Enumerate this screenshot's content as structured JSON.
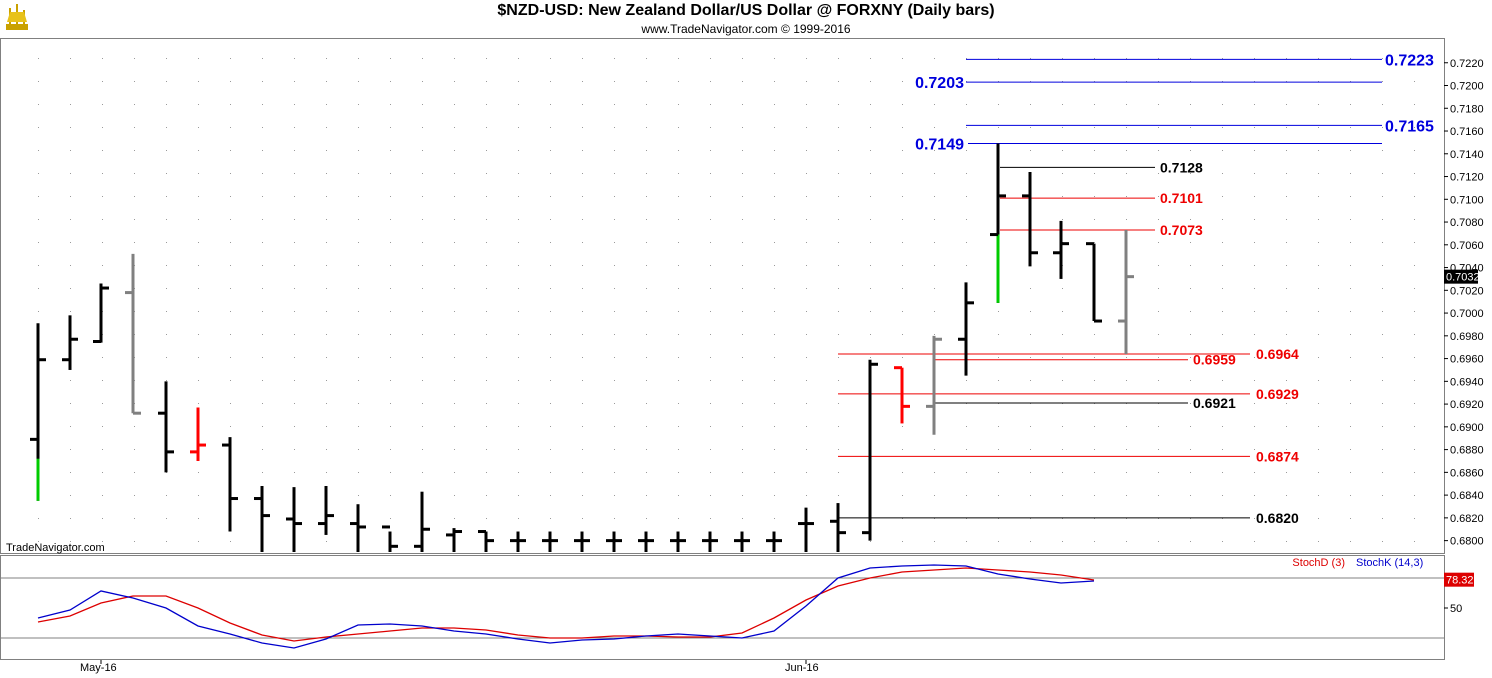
{
  "header": {
    "title": "$NZD-USD:  New Zealand Dollar/US Dollar @ FORXNY  (Daily bars)",
    "copyright": "www.TradeNavigator.com © 1999-2016",
    "watermark": "TradeNavigator.com",
    "logo_icon": "ship-icon"
  },
  "colors": {
    "up_bar": "#000000",
    "down_bar": "#000000",
    "gray_bar": "#808080",
    "red_bar": "#ff0000",
    "green_segment": "#00cc00",
    "fib_blue": "#0000dd",
    "fib_red": "#ee0000",
    "fib_black": "#000000",
    "stochD": "#dd0000",
    "stochK": "#0000cc",
    "last_price_bg": "#000000",
    "stoch_value_bg": "#dd0000"
  },
  "chart_data": [
    {
      "type": "ohlc",
      "title": "$NZD-USD:  New Zealand Dollar/US Dollar @ FORXNY  (Daily bars)",
      "ylim": [
        0.679,
        0.724
      ],
      "y_ticks": [
        "0.7220",
        "0.7200",
        "0.7180",
        "0.7160",
        "0.7140",
        "0.7120",
        "0.7100",
        "0.7080",
        "0.7060",
        "0.7040",
        "0.7020",
        "0.7000",
        "0.6980",
        "0.6960",
        "0.6940",
        "0.6920",
        "0.6900",
        "0.6880",
        "0.6860",
        "0.6840",
        "0.6820",
        "0.6800"
      ],
      "x_labels": [
        {
          "label": "May-16",
          "bar": 2
        },
        {
          "label": "Jun-16",
          "bar": 24
        }
      ],
      "last_price": "0.7032",
      "bars": [
        {
          "o": 0.6889,
          "h": 0.6991,
          "l": 0.6835,
          "c": 0.6959,
          "color": "black",
          "low_highlight": 0.6872
        },
        {
          "o": 0.6959,
          "h": 0.6998,
          "l": 0.695,
          "c": 0.6977,
          "color": "black"
        },
        {
          "o": 0.6975,
          "h": 0.7026,
          "l": 0.6974,
          "c": 0.7022,
          "color": "black"
        },
        {
          "o": 0.7018,
          "h": 0.7052,
          "l": 0.6912,
          "c": 0.6912,
          "color": "gray"
        },
        {
          "o": 0.6912,
          "h": 0.694,
          "l": 0.686,
          "c": 0.6878,
          "color": "black"
        },
        {
          "o": 0.6878,
          "h": 0.6917,
          "l": 0.687,
          "c": 0.6884,
          "color": "red"
        },
        {
          "o": 0.6884,
          "h": 0.6891,
          "l": 0.6808,
          "c": 0.6837,
          "color": "black"
        },
        {
          "o": 0.6837,
          "h": 0.6848,
          "l": 0.679,
          "c": 0.6822,
          "color": "black"
        },
        {
          "o": 0.6819,
          "h": 0.6847,
          "l": 0.679,
          "c": 0.6815,
          "color": "black"
        },
        {
          "o": 0.6815,
          "h": 0.6848,
          "l": 0.6805,
          "c": 0.6822,
          "color": "black"
        },
        {
          "o": 0.6815,
          "h": 0.6832,
          "l": 0.679,
          "c": 0.6812,
          "color": "black"
        },
        {
          "o": 0.6812,
          "h": 0.6808,
          "l": 0.679,
          "c": 0.6795,
          "color": "black"
        },
        {
          "o": 0.6795,
          "h": 0.6843,
          "l": 0.679,
          "c": 0.681,
          "color": "black"
        },
        {
          "o": 0.6805,
          "h": 0.6811,
          "l": 0.679,
          "c": 0.6808,
          "color": "black"
        },
        {
          "o": 0.6808,
          "h": 0.6808,
          "l": 0.679,
          "c": 0.68,
          "color": "black"
        },
        {
          "o": 0.68,
          "h": 0.6808,
          "l": 0.679,
          "c": 0.68,
          "color": "black"
        },
        {
          "o": 0.68,
          "h": 0.6808,
          "l": 0.679,
          "c": 0.68,
          "color": "black"
        },
        {
          "o": 0.68,
          "h": 0.6808,
          "l": 0.679,
          "c": 0.68,
          "color": "black"
        },
        {
          "o": 0.68,
          "h": 0.6808,
          "l": 0.679,
          "c": 0.68,
          "color": "black"
        },
        {
          "o": 0.68,
          "h": 0.6808,
          "l": 0.679,
          "c": 0.68,
          "color": "black"
        },
        {
          "o": 0.68,
          "h": 0.6808,
          "l": 0.679,
          "c": 0.68,
          "color": "black"
        },
        {
          "o": 0.68,
          "h": 0.6808,
          "l": 0.679,
          "c": 0.68,
          "color": "black"
        },
        {
          "o": 0.68,
          "h": 0.6808,
          "l": 0.679,
          "c": 0.68,
          "color": "black"
        },
        {
          "o": 0.68,
          "h": 0.6808,
          "l": 0.679,
          "c": 0.68,
          "color": "black"
        },
        {
          "o": 0.6815,
          "h": 0.6829,
          "l": 0.679,
          "c": 0.6815,
          "color": "black"
        },
        {
          "o": 0.6817,
          "h": 0.6833,
          "l": 0.679,
          "c": 0.6807,
          "color": "black"
        },
        {
          "o": 0.6807,
          "h": 0.6959,
          "l": 0.68,
          "c": 0.6955,
          "color": "black"
        },
        {
          "o": 0.6952,
          "h": 0.6952,
          "l": 0.6903,
          "c": 0.6918,
          "color": "red"
        },
        {
          "o": 0.6918,
          "h": 0.698,
          "l": 0.6893,
          "c": 0.6977,
          "color": "gray"
        },
        {
          "o": 0.6977,
          "h": 0.7027,
          "l": 0.6945,
          "c": 0.7009,
          "color": "black"
        },
        {
          "o": 0.7069,
          "h": 0.7149,
          "l": 0.7009,
          "c": 0.7103,
          "color": "black",
          "low_highlight": 0.7069
        },
        {
          "o": 0.7103,
          "h": 0.7124,
          "l": 0.7041,
          "c": 0.7053,
          "color": "black"
        },
        {
          "o": 0.7053,
          "h": 0.7081,
          "l": 0.703,
          "c": 0.7061,
          "color": "black"
        },
        {
          "o": 0.7061,
          "h": 0.7061,
          "l": 0.6993,
          "c": 0.6993,
          "color": "black"
        },
        {
          "o": 0.6993,
          "h": 0.7073,
          "l": 0.6964,
          "c": 0.7032,
          "color": "gray"
        }
      ],
      "levels": [
        {
          "value": 0.7223,
          "label": "0.7223",
          "color": "blue",
          "label_side": "right"
        },
        {
          "value": 0.7203,
          "label": "0.7203",
          "color": "blue",
          "label_side": "left"
        },
        {
          "value": 0.7165,
          "label": "0.7165",
          "color": "blue",
          "label_side": "right"
        },
        {
          "value": 0.7149,
          "label": "0.7149",
          "color": "blue",
          "label_side": "left"
        },
        {
          "value": 0.7128,
          "label": "0.7128",
          "color": "black",
          "label_side": "right"
        },
        {
          "value": 0.7101,
          "label": "0.7101",
          "color": "red",
          "label_side": "right"
        },
        {
          "value": 0.7073,
          "label": "0.7073",
          "color": "red",
          "label_side": "right"
        },
        {
          "value": 0.6964,
          "label": "0.6964",
          "color": "red",
          "label_side": "right"
        },
        {
          "value": 0.6959,
          "label": "0.6959",
          "color": "red",
          "label_side": "right"
        },
        {
          "value": 0.6929,
          "label": "0.6929",
          "color": "red",
          "label_side": "right"
        },
        {
          "value": 0.6921,
          "label": "0.6921",
          "color": "black",
          "label_side": "right"
        },
        {
          "value": 0.6874,
          "label": "0.6874",
          "color": "red",
          "label_side": "right"
        },
        {
          "value": 0.682,
          "label": "0.6820",
          "color": "black",
          "label_side": "right"
        }
      ]
    },
    {
      "type": "line",
      "ylim": [
        0,
        100
      ],
      "y_ticks": [
        "50"
      ],
      "reference_lines": [
        80,
        20
      ],
      "last_value": "78.32",
      "series": [
        {
          "name": "StochD (3)",
          "color": "red",
          "values": [
            36,
            42,
            55,
            62,
            62,
            50,
            35,
            23,
            17,
            21,
            24,
            27,
            30,
            30,
            28,
            23,
            20,
            20,
            22,
            22,
            21,
            21,
            25,
            40,
            58,
            72,
            80,
            86,
            88,
            90,
            88,
            86,
            83,
            78
          ]
        },
        {
          "name": "StochK (14,3)",
          "color": "blue",
          "values": [
            40,
            48,
            67,
            60,
            50,
            32,
            24,
            15,
            10,
            19,
            33,
            34,
            32,
            27,
            24,
            19,
            15,
            18,
            19,
            22,
            24,
            22,
            20,
            27,
            52,
            80,
            90,
            92,
            93,
            92,
            84,
            79,
            75,
            77
          ]
        }
      ]
    }
  ]
}
